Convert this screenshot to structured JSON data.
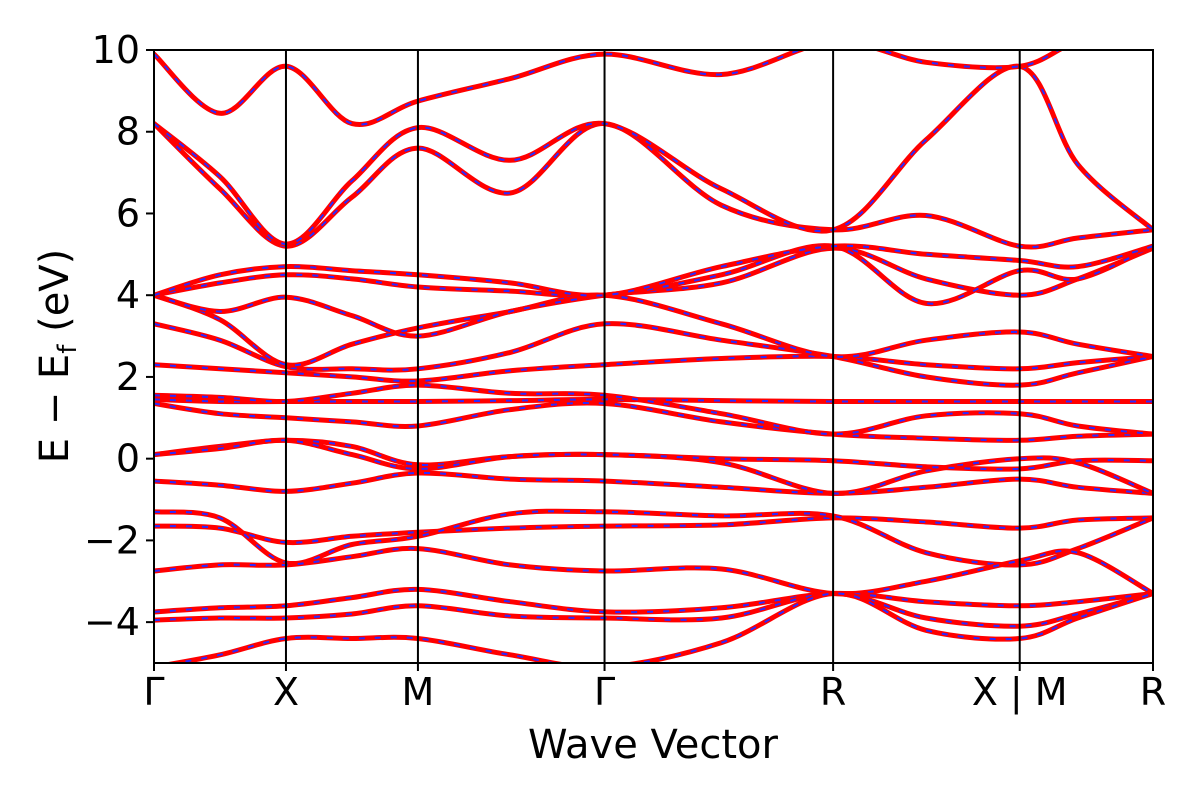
{
  "chart_data": {
    "type": "line",
    "title": "",
    "xlabel": "Wave Vector",
    "ylabel": {
      "base": "E − E",
      "subscript": "f",
      "suffix": " (eV)"
    },
    "ylim": [
      -5,
      10
    ],
    "yticks": [
      10,
      8,
      6,
      4,
      2,
      0,
      -2,
      -4
    ],
    "ytick_labels": [
      "10",
      "8",
      "6",
      "4",
      "2",
      "0",
      "−2",
      "−4"
    ],
    "xlim": [
      0,
      7.57
    ],
    "high_symmetry_points": [
      {
        "label": "Γ",
        "x": 0.0
      },
      {
        "label": "X",
        "x": 1.0
      },
      {
        "label": "M",
        "x": 2.0
      },
      {
        "label": "Γ",
        "x": 3.414
      },
      {
        "label": "R",
        "x": 5.146
      },
      {
        "label": "X | M",
        "x": 6.56
      },
      {
        "label": "R",
        "x": 7.57
      }
    ],
    "line_colors": {
      "dft": "#ff0000",
      "wannier": "#2a2aff"
    },
    "grid": false,
    "legend": "none",
    "bands": [
      {
        "x": [
          0,
          0.5,
          1.0,
          1.5,
          2.0,
          2.7,
          3.414,
          4.3,
          5.146,
          5.85,
          6.56,
          7.0,
          7.57
        ],
        "y": [
          -1.65,
          -1.7,
          -2.05,
          -1.9,
          -1.8,
          -1.7,
          -1.65,
          -1.62,
          -1.45,
          -1.55,
          -1.7,
          -1.5,
          -1.45
        ]
      },
      {
        "x": [
          0,
          0.5,
          1.0,
          1.5,
          2.0,
          2.7,
          3.414,
          4.3,
          5.146,
          5.85,
          6.56,
          7.0,
          7.57
        ],
        "y": [
          -1.3,
          -1.45,
          -2.55,
          -2.1,
          -1.9,
          -1.35,
          -1.3,
          -1.4,
          -1.4,
          -2.3,
          -2.6,
          -2.2,
          -1.45
        ]
      },
      {
        "x": [
          0,
          0.5,
          1.0,
          1.5,
          2.0,
          2.7,
          3.414,
          4.3,
          5.146,
          5.85,
          6.56,
          7.0,
          7.57
        ],
        "y": [
          -2.75,
          -2.6,
          -2.6,
          -2.4,
          -2.2,
          -2.6,
          -2.75,
          -2.7,
          -3.3,
          -3.0,
          -2.5,
          -2.3,
          -3.3
        ]
      },
      {
        "x": [
          0,
          0.5,
          1.0,
          1.5,
          2.0,
          2.7,
          3.414,
          4.3,
          5.146,
          5.85,
          6.56,
          7.0,
          7.57
        ],
        "y": [
          -3.75,
          -3.65,
          -3.6,
          -3.4,
          -3.2,
          -3.5,
          -3.75,
          -3.65,
          -3.3,
          -3.5,
          -3.6,
          -3.5,
          -3.3
        ]
      },
      {
        "x": [
          0,
          0.5,
          1.0,
          1.5,
          2.0,
          2.7,
          3.414,
          4.3,
          5.146,
          5.85,
          6.56,
          7.0,
          7.57
        ],
        "y": [
          -3.95,
          -3.9,
          -3.9,
          -3.8,
          -3.6,
          -3.85,
          -3.9,
          -3.9,
          -3.3,
          -3.9,
          -4.1,
          -3.8,
          -3.3
        ]
      },
      {
        "x": [
          0,
          0.5,
          1.0,
          1.5,
          2.0,
          2.7,
          3.414,
          4.3,
          5.146,
          5.85,
          6.56,
          7.0,
          7.57
        ],
        "y": [
          -5.1,
          -4.8,
          -4.4,
          -4.4,
          -4.4,
          -4.8,
          -5.1,
          -4.5,
          -3.3,
          -4.2,
          -4.4,
          -3.9,
          -3.3
        ]
      },
      {
        "x": [
          0,
          0.5,
          1.0,
          1.5,
          2.0,
          2.7,
          3.414,
          4.3,
          5.146,
          5.85,
          6.56,
          7.0,
          7.57
        ],
        "y": [
          -0.55,
          -0.65,
          -0.8,
          -0.6,
          -0.35,
          -0.5,
          -0.55,
          -0.7,
          -0.85,
          -0.7,
          -0.5,
          -0.7,
          -0.85
        ]
      },
      {
        "x": [
          0,
          0.5,
          1.0,
          1.5,
          2.0,
          2.7,
          3.414,
          4.3,
          5.146,
          5.85,
          6.56,
          7.0,
          7.57
        ],
        "y": [
          0.1,
          0.3,
          0.45,
          0.3,
          -0.15,
          0.05,
          0.1,
          -0.1,
          -0.85,
          -0.3,
          0.0,
          -0.1,
          -0.85
        ]
      },
      {
        "x": [
          0,
          0.5,
          1.0,
          1.5,
          2.0,
          2.7,
          3.414,
          4.3,
          5.146,
          5.85,
          6.56,
          7.0,
          7.57
        ],
        "y": [
          0.1,
          0.25,
          0.45,
          0.1,
          -0.25,
          0.05,
          0.1,
          0.0,
          -0.05,
          -0.2,
          -0.25,
          -0.05,
          -0.05
        ]
      },
      {
        "x": [
          0,
          0.5,
          1.0,
          1.5,
          2.0,
          2.7,
          3.414,
          4.3,
          5.146,
          5.85,
          6.56,
          7.0,
          7.57
        ],
        "y": [
          1.35,
          1.1,
          1.0,
          0.9,
          0.8,
          1.2,
          1.35,
          0.9,
          0.6,
          0.5,
          0.45,
          0.55,
          0.6
        ]
      },
      {
        "x": [
          0,
          0.5,
          1.0,
          1.5,
          2.0,
          2.7,
          3.414,
          4.3,
          5.146,
          5.85,
          6.56,
          7.0,
          7.57
        ],
        "y": [
          1.45,
          1.4,
          1.4,
          1.4,
          1.4,
          1.42,
          1.45,
          1.42,
          1.4,
          1.4,
          1.4,
          1.4,
          1.4
        ]
      },
      {
        "x": [
          0,
          0.5,
          1.0,
          1.5,
          2.0,
          2.7,
          3.414,
          4.3,
          5.146,
          5.85,
          6.56,
          7.0,
          7.57
        ],
        "y": [
          1.55,
          1.5,
          1.4,
          1.6,
          1.8,
          1.6,
          1.55,
          1.1,
          0.6,
          1.05,
          1.1,
          0.8,
          0.6
        ]
      },
      {
        "x": [
          0,
          0.5,
          1.0,
          1.5,
          2.0,
          2.7,
          3.414,
          4.3,
          5.146,
          5.85,
          6.56,
          7.0,
          7.57
        ],
        "y": [
          2.3,
          2.2,
          2.1,
          2.0,
          1.9,
          2.15,
          2.3,
          2.45,
          2.5,
          2.3,
          2.2,
          2.35,
          2.5
        ]
      },
      {
        "x": [
          0,
          0.5,
          1.0,
          1.5,
          2.0,
          2.7,
          3.414,
          4.3,
          5.146,
          5.85,
          6.56,
          7.0,
          7.57
        ],
        "y": [
          3.3,
          2.9,
          2.25,
          2.2,
          2.2,
          2.6,
          3.3,
          2.9,
          2.5,
          2.0,
          1.8,
          2.1,
          2.5
        ]
      },
      {
        "x": [
          0,
          0.5,
          1.0,
          1.5,
          2.0,
          2.7,
          3.414,
          4.3,
          5.146,
          5.85,
          6.56,
          7.0,
          7.57
        ],
        "y": [
          4.0,
          3.4,
          2.3,
          2.8,
          3.2,
          3.6,
          4.0,
          3.3,
          2.5,
          2.9,
          3.1,
          2.8,
          2.5
        ]
      },
      {
        "x": [
          0,
          0.5,
          1.0,
          1.5,
          2.0,
          2.7,
          3.414,
          4.3,
          5.146,
          5.85,
          6.56,
          7.0,
          7.57
        ],
        "y": [
          4.0,
          3.6,
          3.95,
          3.5,
          3.0,
          3.6,
          4.0,
          4.3,
          5.15,
          4.4,
          4.0,
          4.4,
          5.15
        ]
      },
      {
        "x": [
          0,
          0.5,
          1.0,
          1.5,
          2.0,
          2.7,
          3.414,
          4.3,
          5.146,
          5.85,
          6.56,
          7.0,
          7.57
        ],
        "y": [
          4.0,
          4.3,
          4.5,
          4.4,
          4.2,
          4.1,
          4.0,
          4.5,
          5.2,
          3.8,
          4.6,
          4.4,
          5.2
        ]
      },
      {
        "x": [
          0,
          0.5,
          1.0,
          1.5,
          2.0,
          2.7,
          3.414,
          4.3,
          5.146,
          5.85,
          6.56,
          7.0,
          7.57
        ],
        "y": [
          4.0,
          4.5,
          4.7,
          4.6,
          4.5,
          4.3,
          4.0,
          4.7,
          5.2,
          5.0,
          4.85,
          4.7,
          5.2
        ]
      },
      {
        "x": [
          0,
          0.5,
          1.0,
          1.5,
          2.0,
          2.7,
          3.414,
          4.3,
          5.146,
          5.85,
          6.56,
          7.0,
          7.57
        ],
        "y": [
          8.2,
          6.6,
          5.2,
          6.4,
          7.6,
          6.5,
          8.2,
          6.2,
          5.6,
          5.95,
          5.2,
          5.4,
          5.6
        ]
      },
      {
        "x": [
          0,
          0.5,
          1.0,
          1.5,
          2.0,
          2.7,
          3.414,
          4.3,
          5.146,
          5.85,
          6.56,
          7.0,
          7.57
        ],
        "y": [
          8.2,
          6.9,
          5.25,
          6.8,
          8.1,
          7.3,
          8.2,
          6.6,
          5.6,
          7.8,
          9.6,
          7.2,
          5.6
        ]
      },
      {
        "x": [
          0,
          0.5,
          1.0,
          1.5,
          2.0,
          2.7,
          3.414,
          4.3,
          5.146,
          5.85,
          6.56,
          7.0,
          7.57
        ],
        "y": [
          9.9,
          8.45,
          9.6,
          8.2,
          8.75,
          9.3,
          9.9,
          9.4,
          10.2,
          9.7,
          9.6,
          10.2,
          10.5
        ]
      }
    ]
  }
}
